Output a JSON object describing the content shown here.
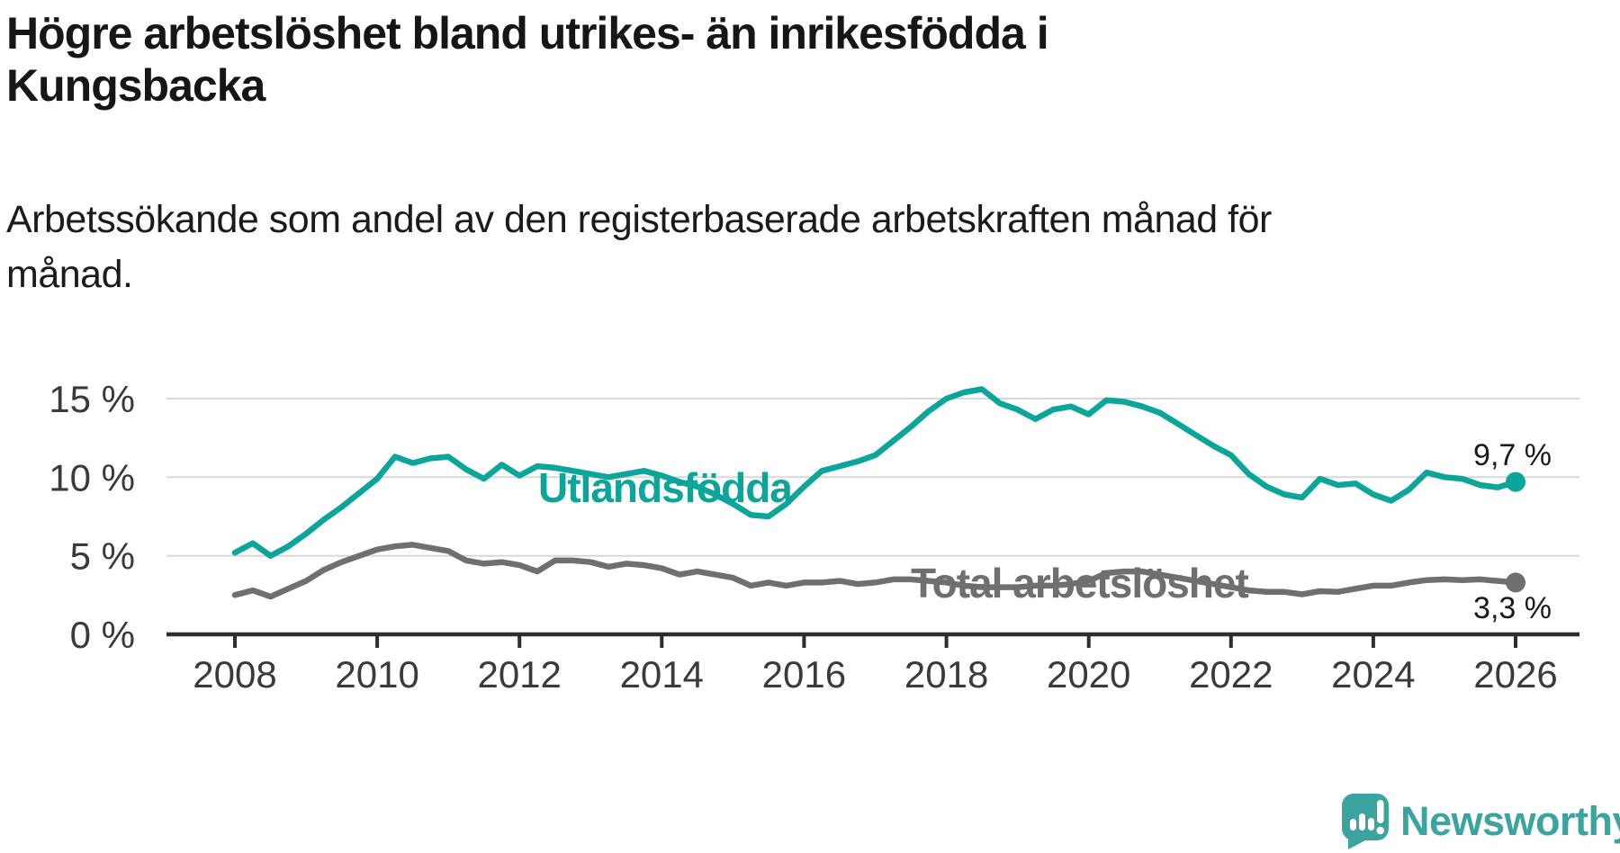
{
  "header": {
    "title_lines": [
      "Högre arbetslöshet bland utrikes- än inrikesfödda i",
      "Kungsbacka"
    ],
    "subtitle_lines": [
      "Arbetssökande som andel av den registerbaserade arbetskraften månad för",
      "månad."
    ]
  },
  "logo": {
    "text": "Newsworthy",
    "color": "#3ca49f",
    "icon": "speech-bubble-bar-chart-exclamation"
  },
  "chart_data": {
    "type": "line",
    "title": "Högre arbetslöshet bland utrikes- än inrikesfödda i Kungsbacka",
    "subtitle": "Arbetssökande som andel av den registerbaserade arbetskraften månad för månad.",
    "unit": "%",
    "grid": true,
    "legend_position": "inline-labels",
    "x_axis": {
      "ticks": [
        2008,
        2010,
        2012,
        2014,
        2016,
        2018,
        2020,
        2022,
        2024,
        2026
      ],
      "range": [
        2007.05,
        2026.9
      ]
    },
    "y_axis": {
      "tick_labels": [
        "0 %",
        "5 %",
        "10 %",
        "15 %"
      ],
      "tick_values": [
        0,
        5,
        10,
        15
      ],
      "range": [
        0,
        16.3
      ]
    },
    "colors": {
      "foreign_born": "#0ba59a",
      "total": "#6f6f72",
      "grid": "#d8d8d8",
      "axis": "#2e2e2e",
      "annotation": "#1a1a1a"
    },
    "series": [
      {
        "name": "Utlandsfödda",
        "color": "#0ba59a",
        "end_label": "9,7 %",
        "end_value": 9.7,
        "x": [
          2008.0,
          2008.25,
          2008.5,
          2008.75,
          2009.0,
          2009.25,
          2009.5,
          2009.75,
          2010.0,
          2010.25,
          2010.5,
          2010.75,
          2011.0,
          2011.25,
          2011.5,
          2011.75,
          2012.0,
          2012.25,
          2012.5,
          2012.75,
          2013.0,
          2013.25,
          2013.5,
          2013.75,
          2014.0,
          2014.25,
          2014.5,
          2014.75,
          2015.0,
          2015.25,
          2015.5,
          2015.75,
          2016.0,
          2016.25,
          2016.5,
          2016.75,
          2017.0,
          2017.25,
          2017.5,
          2017.75,
          2018.0,
          2018.25,
          2018.5,
          2018.75,
          2019.0,
          2019.25,
          2019.5,
          2019.75,
          2020.0,
          2020.25,
          2020.5,
          2020.75,
          2021.0,
          2021.25,
          2021.5,
          2021.75,
          2022.0,
          2022.25,
          2022.5,
          2022.75,
          2023.0,
          2023.25,
          2023.5,
          2023.75,
          2024.0,
          2024.25,
          2024.5,
          2024.75,
          2025.0,
          2025.25,
          2025.5,
          2025.75,
          2026.0
        ],
        "values": [
          5.2,
          5.8,
          5.0,
          5.6,
          6.4,
          7.3,
          8.1,
          9.0,
          9.9,
          11.3,
          10.9,
          11.2,
          11.3,
          10.5,
          9.9,
          10.8,
          10.1,
          10.7,
          10.6,
          10.4,
          10.2,
          10.0,
          10.2,
          10.4,
          10.1,
          9.7,
          9.4,
          8.9,
          8.3,
          7.6,
          7.5,
          8.3,
          9.4,
          10.4,
          10.7,
          11.0,
          11.4,
          12.3,
          13.2,
          14.2,
          15.0,
          15.4,
          15.6,
          14.7,
          14.3,
          13.7,
          14.3,
          14.5,
          14.0,
          14.9,
          14.8,
          14.5,
          14.1,
          13.4,
          12.7,
          12.0,
          11.4,
          10.2,
          9.4,
          8.9,
          8.7,
          9.9,
          9.5,
          9.6,
          8.9,
          8.5,
          9.2,
          10.3,
          10.0,
          9.9,
          9.5,
          9.35,
          9.7
        ]
      },
      {
        "name": "Total arbetslöshet",
        "color": "#6f6f72",
        "end_label": "3,3 %",
        "end_value": 3.3,
        "x": [
          2008.0,
          2008.25,
          2008.5,
          2008.75,
          2009.0,
          2009.25,
          2009.5,
          2009.75,
          2010.0,
          2010.25,
          2010.5,
          2010.75,
          2011.0,
          2011.25,
          2011.5,
          2011.75,
          2012.0,
          2012.25,
          2012.5,
          2012.75,
          2013.0,
          2013.25,
          2013.5,
          2013.75,
          2014.0,
          2014.25,
          2014.5,
          2014.75,
          2015.0,
          2015.25,
          2015.5,
          2015.75,
          2016.0,
          2016.25,
          2016.5,
          2016.75,
          2017.0,
          2017.25,
          2017.5,
          2017.75,
          2018.0,
          2018.25,
          2018.5,
          2018.75,
          2019.0,
          2019.25,
          2019.5,
          2019.75,
          2020.0,
          2020.25,
          2020.5,
          2020.75,
          2021.0,
          2021.25,
          2021.5,
          2021.75,
          2022.0,
          2022.25,
          2022.5,
          2022.75,
          2023.0,
          2023.25,
          2023.5,
          2023.75,
          2024.0,
          2024.25,
          2024.5,
          2024.75,
          2025.0,
          2025.25,
          2025.5,
          2025.75,
          2026.0
        ],
        "values": [
          2.5,
          2.8,
          2.4,
          2.9,
          3.4,
          4.1,
          4.6,
          5.0,
          5.4,
          5.6,
          5.7,
          5.5,
          5.3,
          4.7,
          4.5,
          4.6,
          4.4,
          4.0,
          4.7,
          4.7,
          4.6,
          4.3,
          4.5,
          4.4,
          4.2,
          3.8,
          4.0,
          3.8,
          3.6,
          3.1,
          3.3,
          3.1,
          3.3,
          3.3,
          3.4,
          3.2,
          3.3,
          3.5,
          3.5,
          3.4,
          3.3,
          3.1,
          3.0,
          3.0,
          3.0,
          3.1,
          3.1,
          3.2,
          3.4,
          3.9,
          4.0,
          4.0,
          3.8,
          3.6,
          3.4,
          3.2,
          3.0,
          2.8,
          2.7,
          2.7,
          2.55,
          2.75,
          2.7,
          2.9,
          3.1,
          3.1,
          3.3,
          3.45,
          3.5,
          3.45,
          3.5,
          3.4,
          3.3
        ]
      }
    ]
  }
}
